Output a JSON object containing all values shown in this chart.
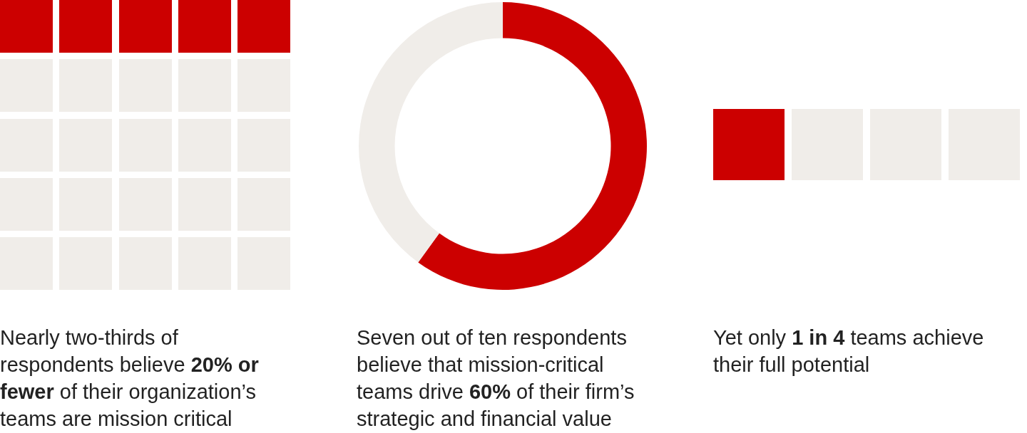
{
  "chart_data": [
    {
      "type": "other",
      "annotations": [
        "Nearly two-thirds of respondents believe ",
        "20% or fewer",
        " of their organization’s teams are mission critical"
      ]
    },
    {
      "type": "donut",
      "categories": [
        null,
        null
      ],
      "values": [
        60,
        40
      ],
      "colors": [
        "#cc0000",
        "#f0ede9"
      ],
      "annotations": [
        "Seven out of ten respondents believe that mission-critical teams drive ",
        "60%",
        " of their firm’s strategic and financial value"
      ]
    },
    {
      "type": "other",
      "annotations": [
        "Yet only ",
        "1 in 4",
        " teams achieve their full potential"
      ]
    }
  ]
}
